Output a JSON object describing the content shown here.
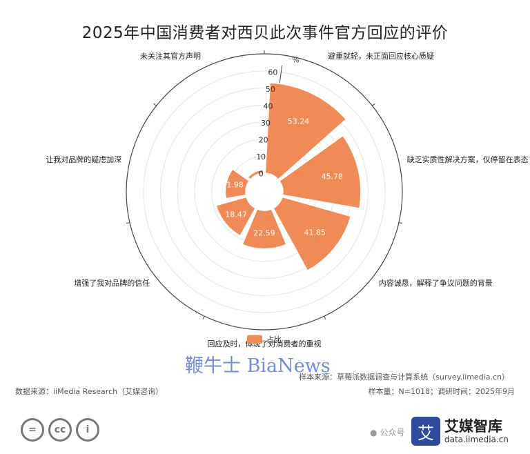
{
  "title": "2025年中国消费者对西贝此次事件官方回应的评价",
  "colors": {
    "bar": "#f08a56",
    "bar_stroke": "#ffffff",
    "grid": "#e4e4e4",
    "axis": "#444444"
  },
  "chart_data": {
    "type": "polar-bar",
    "unit": "%",
    "rlim": [
      0,
      60
    ],
    "r_ticks": [
      0,
      10,
      20,
      30,
      40,
      50,
      60
    ],
    "categories": [
      "避重就轻，未正面回应核心质疑",
      "缺乏实质性解决方案，仅停留在表态",
      "内容诚恳，解释了争议问题的背景",
      "回应及时，体现了对消费者的重视",
      "增强了我对品牌的信任",
      "让我对品牌的疑虑加深",
      "未关注其官方声明"
    ],
    "series": [
      {
        "name": "占比",
        "values": [
          53.24,
          45.78,
          41.85,
          22.59,
          18.47,
          11.98,
          1.96
        ]
      }
    ],
    "legend_position": "bottom"
  },
  "footer": {
    "watermark": "鞭牛士 BiaNews",
    "sample_source": "样本来源：草莓派数据调查与计算系统（survey.iimedia.cn）",
    "data_source": "数据来源：iiMedia Research（艾媒咨询）",
    "sample_info": "样本量：N=1018；调研时间：2025年9月",
    "license_icons": [
      "=",
      "cc",
      "i"
    ],
    "brand_logo": "艾",
    "brand_name": "艾媒智库",
    "brand_url": "data.iimedia.cn",
    "wechat_text": "公众号"
  }
}
